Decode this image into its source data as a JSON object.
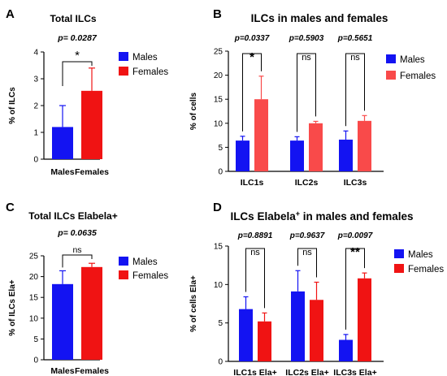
{
  "colors": {
    "males": "#1313f2",
    "females": "#f01313",
    "females_light": "#f94a4a",
    "axis": "#000000"
  },
  "chart_data": [
    {
      "panel_label": "A",
      "type": "bar",
      "title": "Total ILCs",
      "ylabel": "% of ILCs",
      "xlabel": "",
      "ylim": [
        0,
        4
      ],
      "yticks": [
        0,
        1,
        2,
        3,
        4
      ],
      "categories": [
        "Males",
        "Females"
      ],
      "values": [
        1.2,
        2.55
      ],
      "errors": [
        0.8,
        0.85
      ],
      "legend": [
        {
          "name": "Males",
          "color": "#1313f2"
        },
        {
          "name": "Females",
          "color": "#f01313"
        }
      ],
      "legend_position": "right",
      "pvalue": "p= 0.0287",
      "significance": "*"
    },
    {
      "panel_label": "B",
      "type": "bar",
      "title": "ILCs in males and females",
      "ylabel": "% of cells",
      "xlabel": "",
      "ylim": [
        0,
        25
      ],
      "yticks": [
        0,
        5,
        10,
        15,
        20,
        25
      ],
      "categories": [
        "ILC1s",
        "ILC2s",
        "ILC3s"
      ],
      "series": [
        {
          "name": "Males",
          "color": "#1313f2",
          "values": [
            6.4,
            6.4,
            6.6
          ],
          "errors": [
            0.9,
            0.8,
            1.8
          ]
        },
        {
          "name": "Females",
          "color": "#f94a4a",
          "values": [
            15.0,
            10.0,
            10.5
          ],
          "errors": [
            4.8,
            0.4,
            1.1
          ]
        }
      ],
      "legend_position": "right",
      "comparisons": [
        {
          "pvalue": "p=0.0337",
          "label": "*"
        },
        {
          "pvalue": "p=0.5903",
          "label": "ns"
        },
        {
          "pvalue": "p=0.5651",
          "label": "ns"
        }
      ]
    },
    {
      "panel_label": "C",
      "type": "bar",
      "title": "Total ILCs Elabela+",
      "ylabel": "% of ILCs Ela+",
      "xlabel": "",
      "ylim": [
        0,
        25
      ],
      "yticks": [
        0,
        5,
        10,
        15,
        20,
        25
      ],
      "categories": [
        "Males",
        "Females"
      ],
      "values": [
        18.2,
        22.3
      ],
      "errors": [
        3.2,
        0.9
      ],
      "legend": [
        {
          "name": "Males",
          "color": "#1313f2"
        },
        {
          "name": "Females",
          "color": "#f01313"
        }
      ],
      "legend_position": "right",
      "pvalue": "p= 0.0635",
      "significance": "ns"
    },
    {
      "panel_label": "D",
      "type": "bar",
      "title": "ILCs Elabela",
      "title_sup": "+",
      "title_rest": " in males and females",
      "ylabel": "% of cells Ela+",
      "xlabel": "",
      "ylim": [
        0,
        15
      ],
      "yticks": [
        0,
        5,
        10,
        15
      ],
      "categories": [
        "ILC1s Ela+",
        "ILC2s Ela+",
        "ILC3s Ela+"
      ],
      "series": [
        {
          "name": "Males",
          "color": "#1313f2",
          "values": [
            6.8,
            9.1,
            2.8
          ],
          "errors": [
            1.6,
            2.7,
            0.7
          ]
        },
        {
          "name": "Females",
          "color": "#f01313",
          "values": [
            5.2,
            8.0,
            10.8
          ],
          "errors": [
            1.1,
            2.3,
            0.7
          ]
        }
      ],
      "legend_position": "right",
      "comparisons": [
        {
          "pvalue": "p=0.8891",
          "label": "ns"
        },
        {
          "pvalue": "p=0.9637",
          "label": "ns"
        },
        {
          "pvalue": "p=0.0097",
          "label": "**"
        }
      ]
    }
  ]
}
